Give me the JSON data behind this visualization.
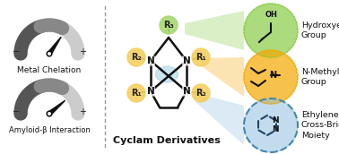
{
  "background_color": "#ffffff",
  "gauge1_label": "Metal Chelation",
  "gauge2_label": "Amyloid-β Interaction",
  "center_label": "Cyclam Derivatives",
  "right_labels": [
    "Hydroxyethyl\nGroup",
    "N-Methyl\nGroup",
    "Ethylene\nCross-Bridged\nMoiety"
  ],
  "right_colors": [
    "#88cc44",
    "#f5a800",
    "#88bbdd"
  ],
  "r1_r2_color": "#f5d060",
  "r3_color": "#a8d870",
  "cyclam_ring_color": "#add8e6",
  "gauge_lw": 11,
  "gauge_dark": "#555555",
  "gauge_mid": "#888888",
  "gauge_light": "#cccccc",
  "needle_color": "#111111",
  "separator_color": "#999999"
}
